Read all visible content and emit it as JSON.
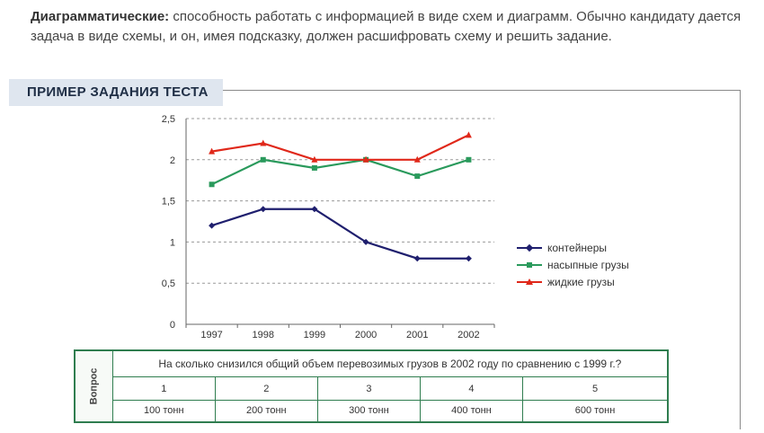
{
  "intro": {
    "bold": "Диаграмматические:",
    "text": "способность работать с информацией в виде схем и диаграмм. Обычно кандидату дается задача в виде схемы, и он, имея подсказку, должен расшифровать схему и решить задание."
  },
  "banner": "ПРИМЕР ЗАДАНИЯ ТЕСТА",
  "chart_data": {
    "type": "line",
    "x": [
      "1997",
      "1998",
      "1999",
      "2000",
      "2001",
      "2002"
    ],
    "y_ticks": [
      "0",
      "0,5",
      "1",
      "1,5",
      "2",
      "2,5"
    ],
    "ylim": [
      0,
      2.5
    ],
    "grid": "dashed horizontal",
    "legend": "right",
    "series": [
      {
        "name": "контейнеры",
        "color": "#1f1f6e",
        "marker": "diamond",
        "values": [
          1.2,
          1.4,
          1.4,
          1.0,
          0.8,
          0.8
        ]
      },
      {
        "name": "насыпные грузы",
        "color": "#2a9a5c",
        "marker": "square",
        "values": [
          1.7,
          2.0,
          1.9,
          2.0,
          1.8,
          2.0
        ]
      },
      {
        "name": "жидкие грузы",
        "color": "#e0281a",
        "marker": "triangle",
        "values": [
          2.1,
          2.2,
          2.0,
          2.0,
          2.0,
          2.3
        ]
      }
    ]
  },
  "question": {
    "side_label": "Вопрос",
    "text": "На сколько снизился общий объем перевозимых грузов в 2002 году по сравнению с 1999 г.?",
    "numbers": [
      "1",
      "2",
      "3",
      "4",
      "5"
    ],
    "answers": [
      "100 тонн",
      "200 тонн",
      "300 тонн",
      "400 тонн",
      "600 тонн"
    ]
  }
}
